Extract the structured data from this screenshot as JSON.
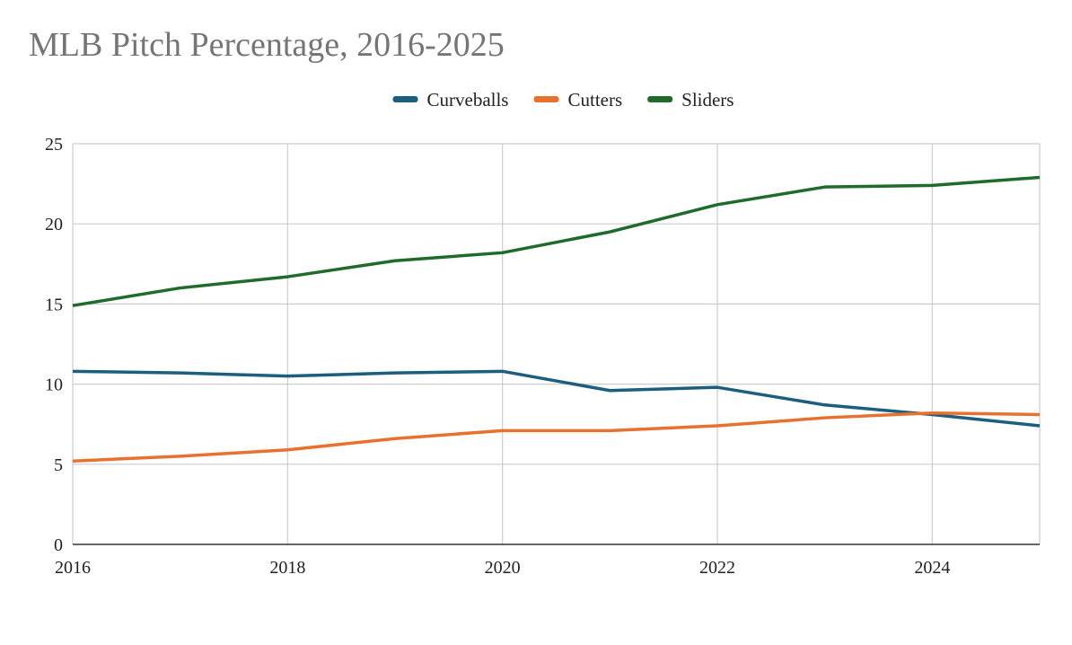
{
  "chart_data": {
    "type": "line",
    "title": "MLB Pitch Percentage, 2016-2025",
    "xlabel": "",
    "ylabel": "",
    "x": [
      2016,
      2017,
      2018,
      2019,
      2020,
      2021,
      2022,
      2023,
      2024,
      2025
    ],
    "x_ticks": [
      "2016",
      "2018",
      "2020",
      "2022",
      "2024"
    ],
    "xlim": [
      2016,
      2025
    ],
    "ylim": [
      0,
      25
    ],
    "y_ticks": [
      "0",
      "5",
      "10",
      "15",
      "20",
      "25"
    ],
    "grid": true,
    "legend_position": "top-center",
    "series": [
      {
        "name": "Curveballs",
        "color": "#1b5e7d",
        "values": [
          10.8,
          10.7,
          10.5,
          10.7,
          10.8,
          9.6,
          9.8,
          8.7,
          8.1,
          7.4
        ]
      },
      {
        "name": "Cutters",
        "color": "#e8712f",
        "values": [
          5.2,
          5.5,
          5.9,
          6.6,
          7.1,
          7.1,
          7.4,
          7.9,
          8.2,
          8.1
        ]
      },
      {
        "name": "Sliders",
        "color": "#1e6b2a",
        "values": [
          14.9,
          16.0,
          16.7,
          17.7,
          18.2,
          19.5,
          21.2,
          22.3,
          22.4,
          22.9
        ]
      }
    ]
  }
}
